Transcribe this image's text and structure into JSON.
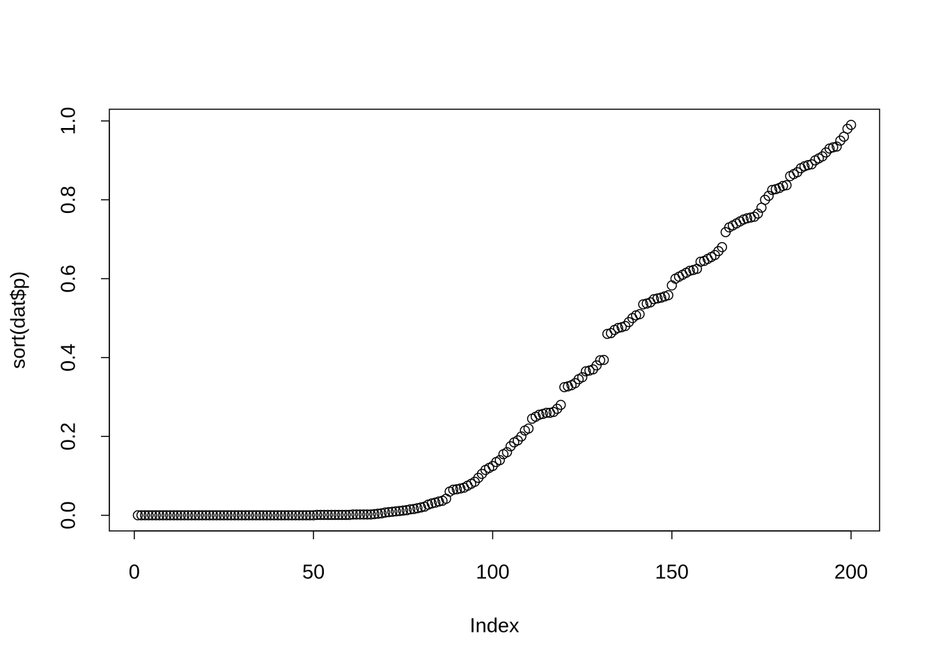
{
  "chart_data": {
    "type": "scatter",
    "x_label": "Index",
    "y_label": "sort(dat$p)",
    "color": "#000000",
    "xlim": [
      -6.96,
      207.96
    ],
    "ylim": [
      -0.0396,
      1.0296
    ],
    "xticks": [
      0,
      50,
      100,
      150,
      200
    ],
    "yticks": [
      {
        "value": 0,
        "label": "0.0"
      },
      0.2,
      0.4,
      0.6,
      0.8,
      {
        "value": 1,
        "label": "1.0"
      }
    ],
    "x": [
      1,
      2,
      3,
      4,
      5,
      6,
      7,
      8,
      9,
      10,
      11,
      12,
      13,
      14,
      15,
      16,
      17,
      18,
      19,
      20,
      21,
      22,
      23,
      24,
      25,
      26,
      27,
      28,
      29,
      30,
      31,
      32,
      33,
      34,
      35,
      36,
      37,
      38,
      39,
      40,
      41,
      42,
      43,
      44,
      45,
      46,
      47,
      48,
      49,
      50,
      51,
      52,
      53,
      54,
      55,
      56,
      57,
      58,
      59,
      60,
      61,
      62,
      63,
      64,
      65,
      66,
      67,
      68,
      69,
      70,
      71,
      72,
      73,
      74,
      75,
      76,
      77,
      78,
      79,
      80,
      81,
      82,
      83,
      84,
      85,
      86,
      87,
      88,
      89,
      90,
      91,
      92,
      93,
      94,
      95,
      96,
      97,
      98,
      99,
      100,
      101,
      102,
      103,
      104,
      105,
      106,
      107,
      108,
      109,
      110,
      111,
      112,
      113,
      114,
      115,
      116,
      117,
      118,
      119,
      120,
      121,
      122,
      123,
      124,
      125,
      126,
      127,
      128,
      129,
      130,
      131,
      132,
      133,
      134,
      135,
      136,
      137,
      138,
      139,
      140,
      141,
      142,
      143,
      144,
      145,
      146,
      147,
      148,
      149,
      150,
      151,
      152,
      153,
      154,
      155,
      156,
      157,
      158,
      159,
      160,
      161,
      162,
      163,
      164,
      165,
      166,
      167,
      168,
      169,
      170,
      171,
      172,
      173,
      174,
      175,
      176,
      177,
      178,
      179,
      180,
      181,
      182,
      183,
      184,
      185,
      186,
      187,
      188,
      189,
      190,
      191,
      192,
      193,
      194,
      195,
      196,
      197,
      198,
      199,
      200
    ],
    "values": [
      0,
      0,
      0,
      0,
      0,
      0,
      0,
      0,
      0,
      0,
      0,
      0,
      0,
      0,
      0,
      0,
      0,
      0,
      0,
      0,
      0,
      0,
      0,
      0,
      0,
      0,
      0,
      0,
      0,
      0,
      0,
      0,
      0,
      0,
      0,
      0,
      0,
      0,
      0,
      0,
      0,
      0,
      0,
      0,
      0,
      0,
      0,
      0,
      0,
      0,
      0.001,
      0.001,
      0.001,
      0.001,
      0.001,
      0.001,
      0.001,
      0.001,
      0.001,
      0.001,
      0.002,
      0.002,
      0.002,
      0.002,
      0.002,
      0.002,
      0.003,
      0.004,
      0.005,
      0.007,
      0.008,
      0.009,
      0.01,
      0.011,
      0.012,
      0.013,
      0.015,
      0.016,
      0.018,
      0.02,
      0.022,
      0.027,
      0.03,
      0.032,
      0.035,
      0.037,
      0.042,
      0.06,
      0.065,
      0.066,
      0.068,
      0.07,
      0.075,
      0.08,
      0.085,
      0.095,
      0.105,
      0.115,
      0.12,
      0.125,
      0.135,
      0.14,
      0.155,
      0.16,
      0.175,
      0.185,
      0.19,
      0.2,
      0.215,
      0.22,
      0.245,
      0.25,
      0.255,
      0.257,
      0.26,
      0.26,
      0.262,
      0.27,
      0.28,
      0.325,
      0.327,
      0.33,
      0.335,
      0.345,
      0.35,
      0.365,
      0.367,
      0.37,
      0.38,
      0.393,
      0.394,
      0.46,
      0.462,
      0.47,
      0.475,
      0.477,
      0.48,
      0.49,
      0.5,
      0.507,
      0.51,
      0.535,
      0.537,
      0.54,
      0.548,
      0.55,
      0.552,
      0.555,
      0.558,
      0.583,
      0.6,
      0.605,
      0.61,
      0.615,
      0.62,
      0.622,
      0.625,
      0.643,
      0.645,
      0.65,
      0.655,
      0.66,
      0.67,
      0.68,
      0.718,
      0.73,
      0.735,
      0.74,
      0.745,
      0.75,
      0.753,
      0.755,
      0.757,
      0.765,
      0.78,
      0.8,
      0.81,
      0.825,
      0.827,
      0.83,
      0.835,
      0.837,
      0.86,
      0.865,
      0.87,
      0.88,
      0.885,
      0.888,
      0.89,
      0.9,
      0.905,
      0.91,
      0.92,
      0.93,
      0.933,
      0.935,
      0.95,
      0.96,
      0.98,
      0.99
    ]
  }
}
